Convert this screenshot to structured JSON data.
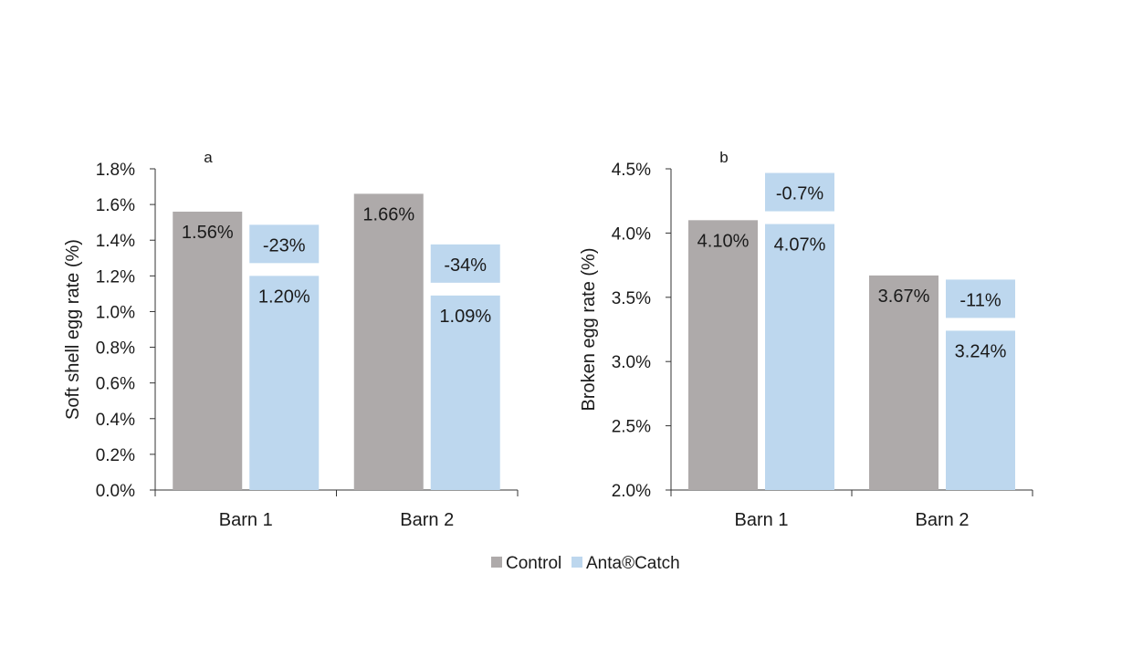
{
  "colors": {
    "control": "#aeaaaa",
    "antacatch": "#bdd7ee",
    "axis": "#333333"
  },
  "legend": [
    {
      "series": "control",
      "label": "Control"
    },
    {
      "series": "antacatch",
      "label": "Anta®Catch"
    }
  ],
  "chart_data": [
    {
      "type": "bar",
      "panel": "a",
      "ylabel": "Soft shell egg rate (%)",
      "ylim": [
        0,
        1.8
      ],
      "yticks": [
        "0.0%",
        "0.2%",
        "0.4%",
        "0.6%",
        "0.8%",
        "1.0%",
        "1.2%",
        "1.4%",
        "1.6%",
        "1.8%"
      ],
      "ytick_values": [
        0,
        0.2,
        0.4,
        0.6,
        0.8,
        1.0,
        1.2,
        1.4,
        1.6,
        1.8
      ],
      "categories": [
        "Barn 1",
        "Barn 2"
      ],
      "series": [
        {
          "name": "Control",
          "key": "control",
          "values": [
            1.56,
            1.66
          ],
          "labels": [
            "1.56%",
            "1.66%"
          ]
        },
        {
          "name": "Anta®Catch",
          "key": "antacatch",
          "values": [
            1.2,
            1.09
          ],
          "labels": [
            "1.20%",
            "1.09%"
          ]
        }
      ],
      "changes": [
        "-23%",
        "-34%"
      ],
      "legend_position": "bottom"
    },
    {
      "type": "bar",
      "panel": "b",
      "ylabel": "Broken egg rate (%)",
      "ylim": [
        2.0,
        4.5
      ],
      "yticks": [
        "2.0%",
        "2.5%",
        "3.0%",
        "3.5%",
        "4.0%",
        "4.5%"
      ],
      "ytick_values": [
        2.0,
        2.5,
        3.0,
        3.5,
        4.0,
        4.5
      ],
      "categories": [
        "Barn 1",
        "Barn 2"
      ],
      "series": [
        {
          "name": "Control",
          "key": "control",
          "values": [
            4.1,
            3.67
          ],
          "labels": [
            "4.10%",
            "3.67%"
          ]
        },
        {
          "name": "Anta®Catch",
          "key": "antacatch",
          "values": [
            4.07,
            3.24
          ],
          "labels": [
            "4.07%",
            "3.24%"
          ]
        }
      ],
      "changes": [
        "-0.7%",
        "-11%"
      ],
      "legend_position": "bottom"
    }
  ]
}
